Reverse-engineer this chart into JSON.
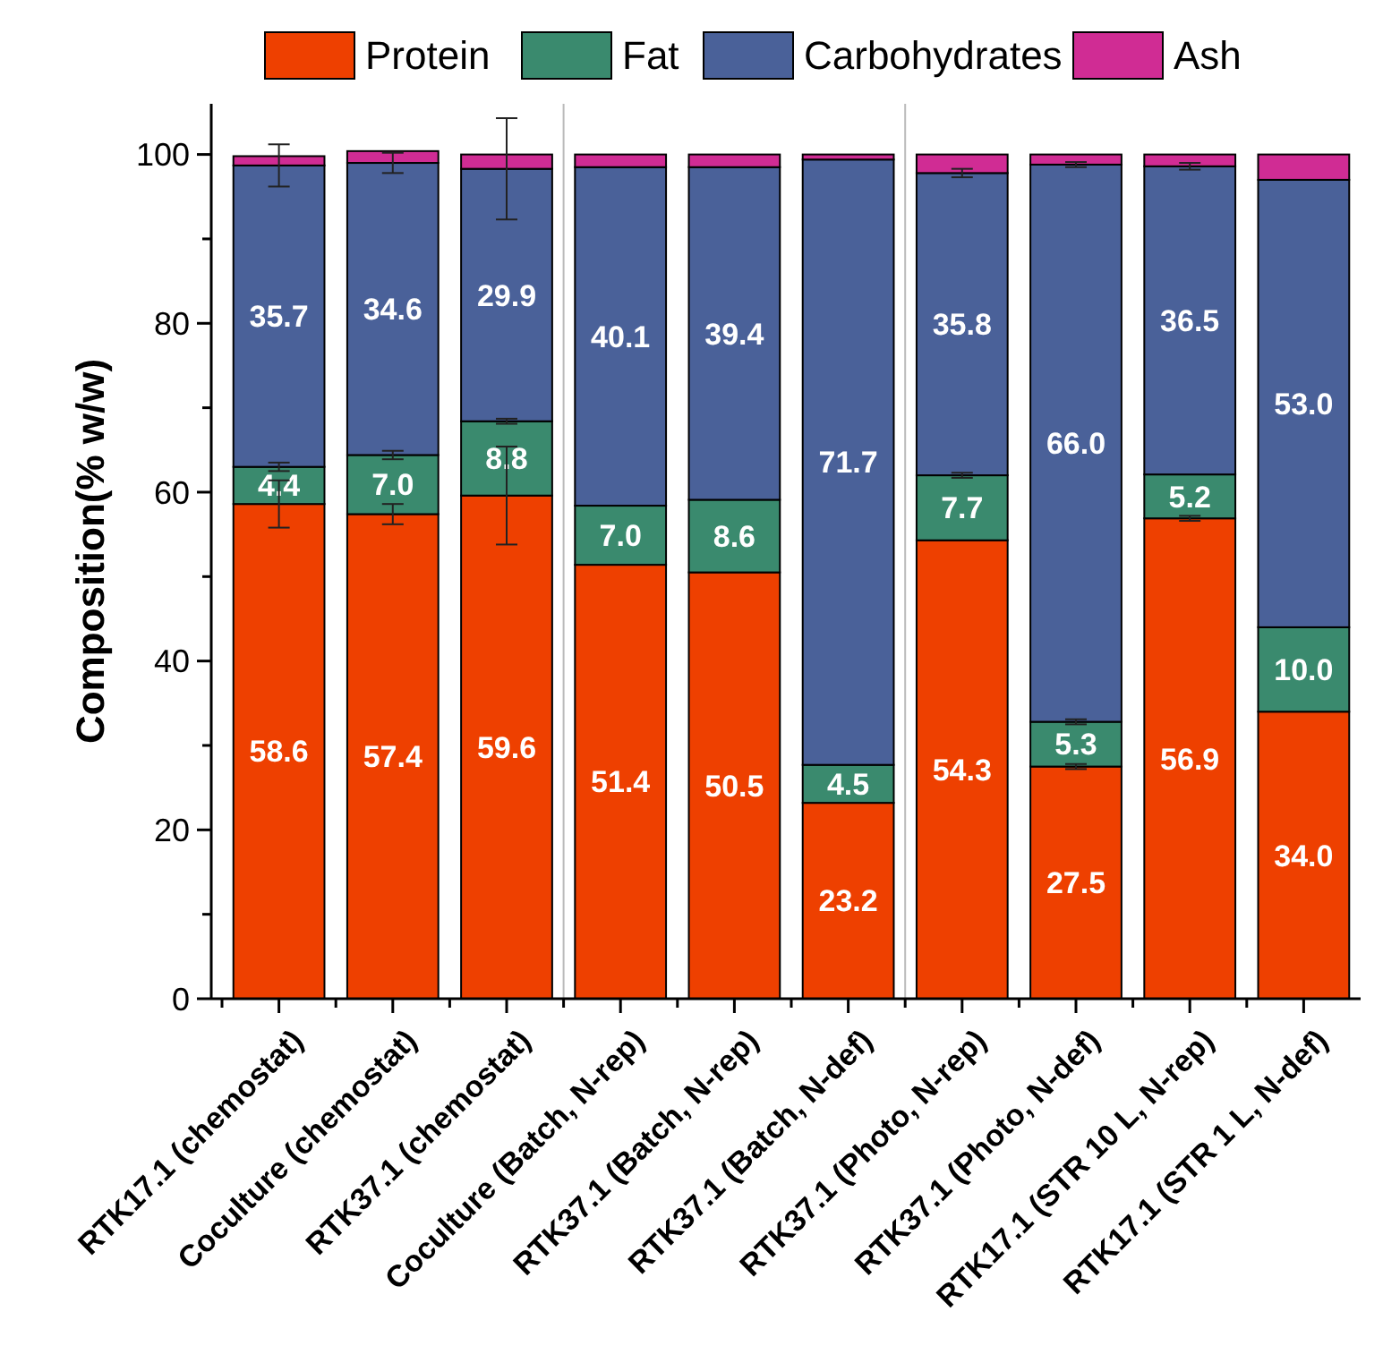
{
  "chart_data": {
    "type": "bar",
    "stacked": true,
    "ylabel": "Composition(% w/w)",
    "legend": "top",
    "ylim": [
      0,
      106
    ],
    "yticks": [
      0,
      {
        "value": 10,
        "label": null
      },
      20,
      {
        "value": 30,
        "label": null
      },
      40,
      {
        "value": 50,
        "label": null
      },
      60,
      {
        "value": 70,
        "label": null
      },
      80,
      {
        "value": 90,
        "label": null
      },
      100
    ],
    "categories": [
      "RTK17.1 (chemostat)",
      "Coculture (chemostat)",
      "RTK37.1 (chemostat)",
      "Coculture (Batch, N-rep)",
      "RTK37.1 (Batch, N-rep)",
      "RTK37.1 (Batch, N-def)",
      "RTK37.1 (Photo, N-rep)",
      "RTK37.1 (Photo, N-def)",
      "RTK17.1 (STR 10 L, N-rep)",
      "RTK17.1 (STR 1 L, N-def)"
    ],
    "series": [
      {
        "name": "Protein",
        "color": "#ee4000",
        "values": [
          58.6,
          57.4,
          59.6,
          51.4,
          50.5,
          23.2,
          54.3,
          27.5,
          56.9,
          34.0
        ],
        "value_labels": [
          "58.6",
          "57.4",
          "59.6",
          "51.4",
          "50.5",
          "23.2",
          "54.3",
          "27.5",
          "56.9",
          "34.0"
        ],
        "errors": [
          2.8,
          1.2,
          5.8,
          null,
          null,
          null,
          null,
          0.3,
          0.3,
          null
        ]
      },
      {
        "name": "Fat",
        "color": "#3a8a6e",
        "values": [
          4.4,
          7.0,
          8.8,
          7.0,
          8.6,
          4.5,
          7.7,
          5.3,
          5.2,
          10.0
        ],
        "value_labels": [
          "4.4",
          "7.0",
          "8.8",
          "7.0",
          "8.6",
          "4.5",
          "7.7",
          "5.3",
          "5.2",
          "10.0"
        ],
        "errors": [
          0.5,
          0.5,
          0.3,
          null,
          null,
          null,
          0.3,
          0.3,
          null,
          null
        ]
      },
      {
        "name": "Carbohydrates",
        "color": "#4a6199",
        "values": [
          35.7,
          34.6,
          29.9,
          40.1,
          39.4,
          71.7,
          35.8,
          66.0,
          36.5,
          53.0
        ],
        "value_labels": [
          "35.7",
          "34.6",
          "29.9",
          "40.1",
          "39.4",
          "71.7",
          "35.8",
          "66.0",
          "36.5",
          "53.0"
        ],
        "errors": [
          2.5,
          1.2,
          6.0,
          null,
          null,
          null,
          0.5,
          0.3,
          0.4,
          null
        ]
      },
      {
        "name": "Ash",
        "color": "#d02c94",
        "values": [
          1.1,
          1.4,
          1.7,
          1.5,
          1.5,
          0.6,
          2.2,
          1.2,
          1.4,
          3.0
        ]
      }
    ]
  }
}
